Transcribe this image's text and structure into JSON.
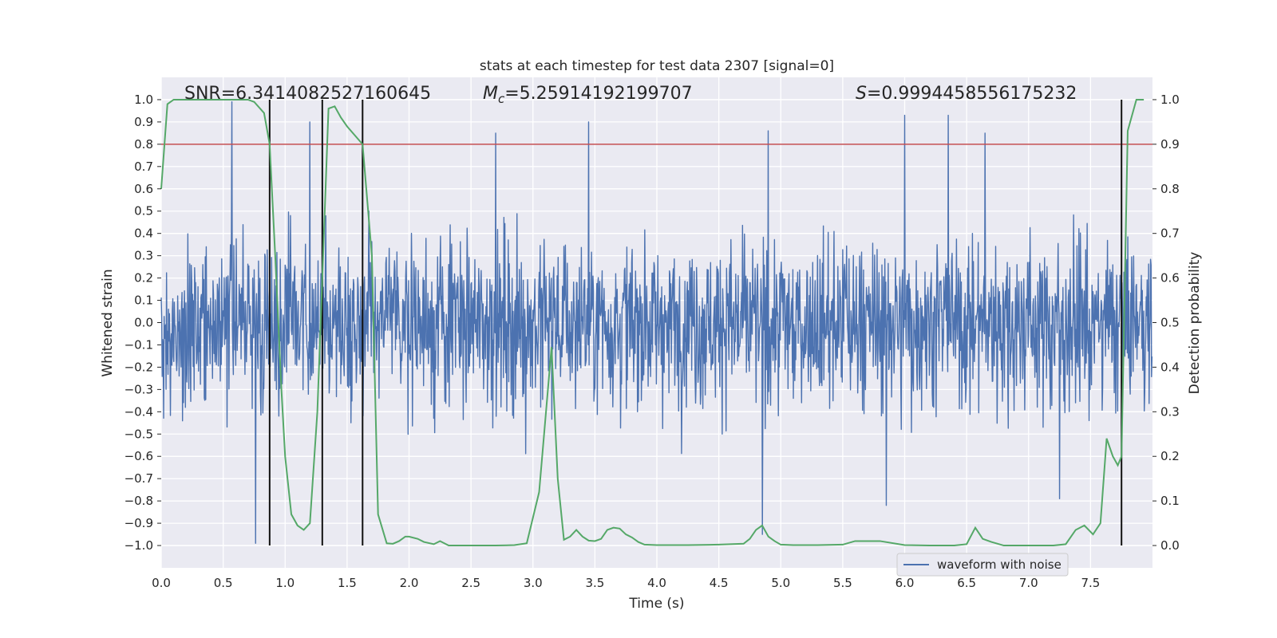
{
  "chart_data": {
    "type": "line",
    "title": "stats at each timestep for test data 2307 [signal=0]",
    "xlabel": "Time (s)",
    "ylabel": "Whitened strain",
    "ylabel_right": "Detection probability",
    "xlim": [
      0.0,
      8.0
    ],
    "ylim": [
      -1.1,
      1.1
    ],
    "ylim_right": [
      -0.05,
      1.05
    ],
    "x_ticks": [
      0.0,
      0.5,
      1.0,
      1.5,
      2.0,
      2.5,
      3.0,
      3.5,
      4.0,
      4.5,
      5.0,
      5.5,
      6.0,
      6.5,
      7.0,
      7.5
    ],
    "x_tick_labels": [
      "0.0",
      "0.5",
      "1.0",
      "1.5",
      "2.0",
      "2.5",
      "3.0",
      "3.5",
      "4.0",
      "4.5",
      "5.0",
      "5.5",
      "6.0",
      "6.5",
      "7.0",
      "7.5"
    ],
    "y_ticks": [
      -1.0,
      -0.9,
      -0.8,
      -0.7,
      -0.6,
      -0.5,
      -0.4,
      -0.3,
      -0.2,
      -0.1,
      0.0,
      0.1,
      0.2,
      0.3,
      0.4,
      0.5,
      0.6,
      0.7,
      0.8,
      0.9,
      1.0
    ],
    "y_tick_labels": [
      "−1.0",
      "−0.9",
      "−0.8",
      "−0.7",
      "−0.6",
      "−0.5",
      "−0.4",
      "−0.3",
      "−0.2",
      "−0.1",
      "0.0",
      "0.1",
      "0.2",
      "0.3",
      "0.4",
      "0.5",
      "0.6",
      "0.7",
      "0.8",
      "0.9",
      "1.0"
    ],
    "y_ticks_right": [
      0.0,
      0.1,
      0.2,
      0.3,
      0.4,
      0.5,
      0.6,
      0.7,
      0.8,
      0.9,
      1.0
    ],
    "y_tick_labels_right": [
      "0.0",
      "0.1",
      "0.2",
      "0.3",
      "0.4",
      "0.5",
      "0.6",
      "0.7",
      "0.8",
      "0.9",
      "1.0"
    ],
    "annotations": {
      "snr": "SNR=6.3414082527160645",
      "mc_symbol": "M",
      "mc_subscript": "c",
      "mc_value": "=5.25914192199707",
      "s_symbol": "S",
      "s_value": "=0.9994458556175232"
    },
    "threshold": 0.9,
    "threshold_color": "#c44e52",
    "vertical_lines_x": [
      0.875,
      1.3,
      1.625,
      7.75
    ],
    "waveform": {
      "name": "waveform with noise",
      "color": "#4c72b0",
      "n_samples": 2048,
      "peak_spikes": [
        [
          0.57,
          0.99
        ],
        [
          0.76,
          -0.99
        ],
        [
          1.2,
          0.9
        ],
        [
          1.3,
          0.95
        ],
        [
          2.7,
          0.85
        ],
        [
          3.45,
          0.9
        ],
        [
          4.85,
          -0.95
        ],
        [
          4.9,
          0.86
        ],
        [
          5.85,
          -0.82
        ],
        [
          6.0,
          0.93
        ],
        [
          6.35,
          0.93
        ],
        [
          6.65,
          0.85
        ],
        [
          7.25,
          -0.79
        ]
      ]
    },
    "probability": {
      "color": "#55a868",
      "x": [
        0.0,
        0.05,
        0.1,
        0.2,
        0.3,
        0.5,
        0.7,
        0.75,
        0.83,
        0.875,
        0.92,
        0.97,
        1.0,
        1.05,
        1.1,
        1.15,
        1.2,
        1.26,
        1.3,
        1.35,
        1.4,
        1.45,
        1.5,
        1.625,
        1.7,
        1.75,
        1.82,
        1.87,
        1.92,
        1.97,
        2.0,
        2.07,
        2.12,
        2.2,
        2.25,
        2.32,
        2.4,
        2.5,
        2.7,
        2.85,
        2.95,
        3.05,
        3.15,
        3.2,
        3.25,
        3.3,
        3.35,
        3.4,
        3.45,
        3.5,
        3.55,
        3.6,
        3.65,
        3.7,
        3.75,
        3.8,
        3.85,
        3.9,
        4.0,
        4.1,
        4.25,
        4.5,
        4.7,
        4.75,
        4.8,
        4.85,
        4.9,
        4.95,
        5.0,
        5.1,
        5.3,
        5.5,
        5.6,
        5.8,
        6.0,
        6.2,
        6.4,
        6.5,
        6.57,
        6.63,
        6.7,
        6.8,
        7.0,
        7.2,
        7.3,
        7.38,
        7.45,
        7.52,
        7.58,
        7.63,
        7.68,
        7.72,
        7.75,
        7.8,
        7.87,
        7.93
      ],
      "y": [
        0.8,
        0.99,
        1.0,
        1.0,
        1.0,
        1.0,
        1.0,
        0.995,
        0.97,
        0.9,
        0.65,
        0.35,
        0.2,
        0.07,
        0.045,
        0.035,
        0.05,
        0.3,
        0.6,
        0.98,
        0.985,
        0.96,
        0.94,
        0.9,
        0.65,
        0.07,
        0.005,
        0.004,
        0.01,
        0.02,
        0.02,
        0.015,
        0.008,
        0.003,
        0.01,
        0.0,
        0.0,
        0.0,
        0.0,
        0.001,
        0.005,
        0.12,
        0.445,
        0.15,
        0.013,
        0.02,
        0.035,
        0.02,
        0.011,
        0.01,
        0.015,
        0.035,
        0.04,
        0.038,
        0.025,
        0.018,
        0.008,
        0.002,
        0.001,
        0.001,
        0.001,
        0.002,
        0.004,
        0.015,
        0.035,
        0.045,
        0.02,
        0.01,
        0.002,
        0.001,
        0.001,
        0.002,
        0.01,
        0.01,
        0.001,
        0.0,
        0.0,
        0.003,
        0.04,
        0.015,
        0.008,
        0.0,
        0.0,
        0.0,
        0.003,
        0.035,
        0.045,
        0.025,
        0.05,
        0.24,
        0.2,
        0.18,
        0.2,
        0.93,
        1.0,
        1.0
      ]
    },
    "legend": {
      "label": "waveform with noise",
      "placement": "lower-right"
    }
  }
}
